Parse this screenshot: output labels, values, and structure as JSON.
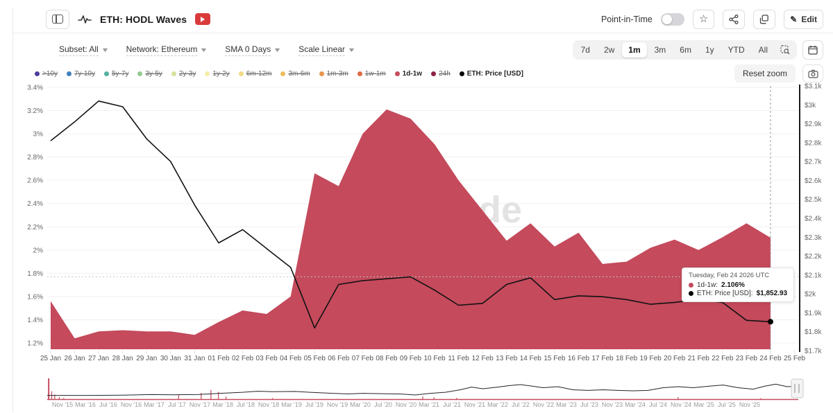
{
  "header": {
    "title": "ETH: HODL Waves",
    "point_in_time_label": "Point-in-Time",
    "edit_label": "Edit"
  },
  "filters": [
    {
      "label": "Subset: All"
    },
    {
      "label": "Network: Ethereum"
    },
    {
      "label": "SMA 0 Days"
    },
    {
      "label": "Scale Linear"
    }
  ],
  "ranges": {
    "options": [
      "7d",
      "2w",
      "1m",
      "3m",
      "6m",
      "1y",
      "YTD",
      "All"
    ],
    "selected": "1m"
  },
  "reset_zoom_label": "Reset zoom",
  "watermark": "glassnode",
  "legend": {
    "items": [
      {
        "label": ">10y",
        "color": "#4b3d9e",
        "active": false
      },
      {
        "label": "7y-10y",
        "color": "#4080bf",
        "active": false
      },
      {
        "label": "5y-7y",
        "color": "#54b0a0",
        "active": false
      },
      {
        "label": "3y-5y",
        "color": "#96ca90",
        "active": false
      },
      {
        "label": "2y-3y",
        "color": "#d4e29e",
        "active": false
      },
      {
        "label": "1y-2y",
        "color": "#f3eda8",
        "active": false
      },
      {
        "label": "6m-12m",
        "color": "#f2d983",
        "active": false
      },
      {
        "label": "3m-6m",
        "color": "#edbd60",
        "active": false
      },
      {
        "label": "1m-3m",
        "color": "#e8944e",
        "active": false
      },
      {
        "label": "1w-1m",
        "color": "#de6a44",
        "active": false
      },
      {
        "label": "1d-1w",
        "color": "#c44a5c",
        "active": true
      },
      {
        "label": "24h",
        "color": "#8f2242",
        "active": false
      },
      {
        "label": "ETH: Price [USD]",
        "color": "#000000",
        "active": true
      }
    ]
  },
  "tooltip": {
    "date": "Tuesday, Feb 24 2026 UTC",
    "series1_label": "1d-1w:",
    "series1_value": "2.106%",
    "series1_color": "#c44a5c",
    "series2_label": "ETH: Price [USD]:",
    "series2_value": "$1,852.93",
    "series2_color": "#000000"
  },
  "chart_data": {
    "type": "area+line",
    "title": "ETH: HODL Waves — 1d-1w band vs ETH price",
    "x": [
      "25 Jan",
      "26 Jan",
      "27 Jan",
      "28 Jan",
      "29 Jan",
      "30 Jan",
      "31 Jan",
      "01 Feb",
      "02 Feb",
      "03 Feb",
      "04 Feb",
      "05 Feb",
      "06 Feb",
      "07 Feb",
      "08 Feb",
      "09 Feb",
      "10 Feb",
      "11 Feb",
      "12 Feb",
      "13 Feb",
      "14 Feb",
      "15 Feb",
      "16 Feb",
      "17 Feb",
      "18 Feb",
      "19 Feb",
      "20 Feb",
      "21 Feb",
      "22 Feb",
      "23 Feb",
      "24 Feb"
    ],
    "x_axis_labels": [
      "25 Jan",
      "26 Jan",
      "27 Jan",
      "28 Jan",
      "29 Jan",
      "30 Jan",
      "31 Jan",
      "01 Feb",
      "02 Feb",
      "03 Feb",
      "04 Feb",
      "05 Feb",
      "06 Feb",
      "07 Feb",
      "08 Feb",
      "09 Feb",
      "10 Feb",
      "11 Feb",
      "12 Feb",
      "13 Feb",
      "14 Feb",
      "15 Feb",
      "16 Feb",
      "17 Feb",
      "18 Feb",
      "19 Feb",
      "20 Feb",
      "21 Feb",
      "22 Feb",
      "23 Feb",
      "24 Feb",
      "25 Feb"
    ],
    "series": [
      {
        "name": "1d-1w",
        "type": "area",
        "unit": "%",
        "color": "#c44a5c",
        "values": [
          1.56,
          1.24,
          1.3,
          1.31,
          1.3,
          1.3,
          1.27,
          1.38,
          1.48,
          1.45,
          1.6,
          2.66,
          2.55,
          3.0,
          3.21,
          3.13,
          2.91,
          2.6,
          2.34,
          2.08,
          2.23,
          2.03,
          2.15,
          1.88,
          1.9,
          2.02,
          2.09,
          2.0,
          2.11,
          2.23,
          2.106
        ]
      },
      {
        "name": "ETH: Price [USD]",
        "type": "line",
        "unit": "USD",
        "color": "#000000",
        "values": [
          2810,
          2910,
          3020,
          2990,
          2820,
          2700,
          2470,
          2270,
          2340,
          2240,
          2140,
          1820,
          2050,
          2070,
          2080,
          2090,
          2020,
          1940,
          1950,
          2050,
          2085,
          1970,
          1990,
          1985,
          1970,
          1945,
          1955,
          1970,
          1955,
          1860,
          1852.93
        ]
      }
    ],
    "y_left": {
      "ticks": [
        "3.4%",
        "3.2%",
        "3%",
        "2.8%",
        "2.6%",
        "2.4%",
        "2.2%",
        "2%",
        "1.8%",
        "1.6%",
        "1.4%",
        "1.2%"
      ],
      "min": 1.2,
      "max": 3.4
    },
    "y_right": {
      "ticks": [
        "$3.1k",
        "$3k",
        "$2.9k",
        "$2.8k",
        "$2.7k",
        "$2.6k",
        "$2.5k",
        "$2.4k",
        "$2.3k",
        "$2.2k",
        "$2.1k",
        "$2k",
        "$1.9k",
        "$1.8k",
        "$1.7k"
      ],
      "min": 1700,
      "max": 3100
    },
    "grid": true,
    "legend_position": "top",
    "crosshair": {
      "x_index": 30,
      "price_marker": 1852.93,
      "mouse_y_pct": 1.77
    }
  },
  "navigator": {
    "labels": [
      "Nov '15",
      "Mar '16",
      "Jul '16",
      "Nov '16",
      "Mar '17",
      "Jul '17",
      "Nov '17",
      "Mar '18",
      "Jul '18",
      "Nov '18",
      "Mar '19",
      "Jul '19",
      "Nov '19",
      "Mar '20",
      "Jul '20",
      "Nov '20",
      "Mar '21",
      "Jul '21",
      "Nov '21",
      "Mar '22",
      "Jul '22",
      "Nov '22",
      "Mar '23",
      "Jul '23",
      "Nov '23",
      "Mar '24",
      "Jul '24",
      "Nov '24",
      "Mar '25",
      "Jul '25",
      "Nov '25"
    ],
    "wave": [
      [
        0,
        0.18
      ],
      [
        0.05,
        0.18
      ],
      [
        0.1,
        0.19
      ],
      [
        0.14,
        0.22
      ],
      [
        0.17,
        0.21
      ],
      [
        0.2,
        0.22
      ],
      [
        0.23,
        0.28
      ],
      [
        0.26,
        0.33
      ],
      [
        0.28,
        0.38
      ],
      [
        0.3,
        0.36
      ],
      [
        0.33,
        0.37
      ],
      [
        0.35,
        0.33
      ],
      [
        0.38,
        0.28
      ],
      [
        0.4,
        0.25
      ],
      [
        0.42,
        0.28
      ],
      [
        0.45,
        0.26
      ],
      [
        0.47,
        0.25
      ],
      [
        0.49,
        0.2
      ],
      [
        0.51,
        0.28
      ],
      [
        0.53,
        0.33
      ],
      [
        0.55,
        0.45
      ],
      [
        0.565,
        0.58
      ],
      [
        0.58,
        0.5
      ],
      [
        0.6,
        0.58
      ],
      [
        0.615,
        0.65
      ],
      [
        0.63,
        0.7
      ],
      [
        0.645,
        0.63
      ],
      [
        0.66,
        0.55
      ],
      [
        0.68,
        0.6
      ],
      [
        0.7,
        0.45
      ],
      [
        0.72,
        0.42
      ],
      [
        0.74,
        0.45
      ],
      [
        0.76,
        0.42
      ],
      [
        0.78,
        0.4
      ],
      [
        0.8,
        0.42
      ],
      [
        0.82,
        0.55
      ],
      [
        0.84,
        0.6
      ],
      [
        0.86,
        0.55
      ],
      [
        0.88,
        0.62
      ],
      [
        0.9,
        0.68
      ],
      [
        0.92,
        0.55
      ],
      [
        0.94,
        0.48
      ],
      [
        0.955,
        0.62
      ],
      [
        0.97,
        0.72
      ],
      [
        0.985,
        0.6
      ],
      [
        1,
        0.62
      ]
    ],
    "spikes": [
      [
        0.002,
        1.0
      ],
      [
        0.006,
        0.38
      ],
      [
        0.01,
        0.22
      ],
      [
        0.016,
        0.1
      ],
      [
        0.022,
        0.06
      ],
      [
        0.175,
        0.22
      ],
      [
        0.205,
        0.3
      ],
      [
        0.218,
        0.45
      ],
      [
        0.228,
        0.35
      ],
      [
        0.238,
        0.12
      ],
      [
        0.3,
        0.05
      ],
      [
        0.5,
        0.13
      ],
      [
        0.515,
        0.09
      ],
      [
        0.545,
        0.06
      ],
      [
        0.84,
        0.1
      ],
      [
        0.95,
        0.05
      ]
    ]
  }
}
